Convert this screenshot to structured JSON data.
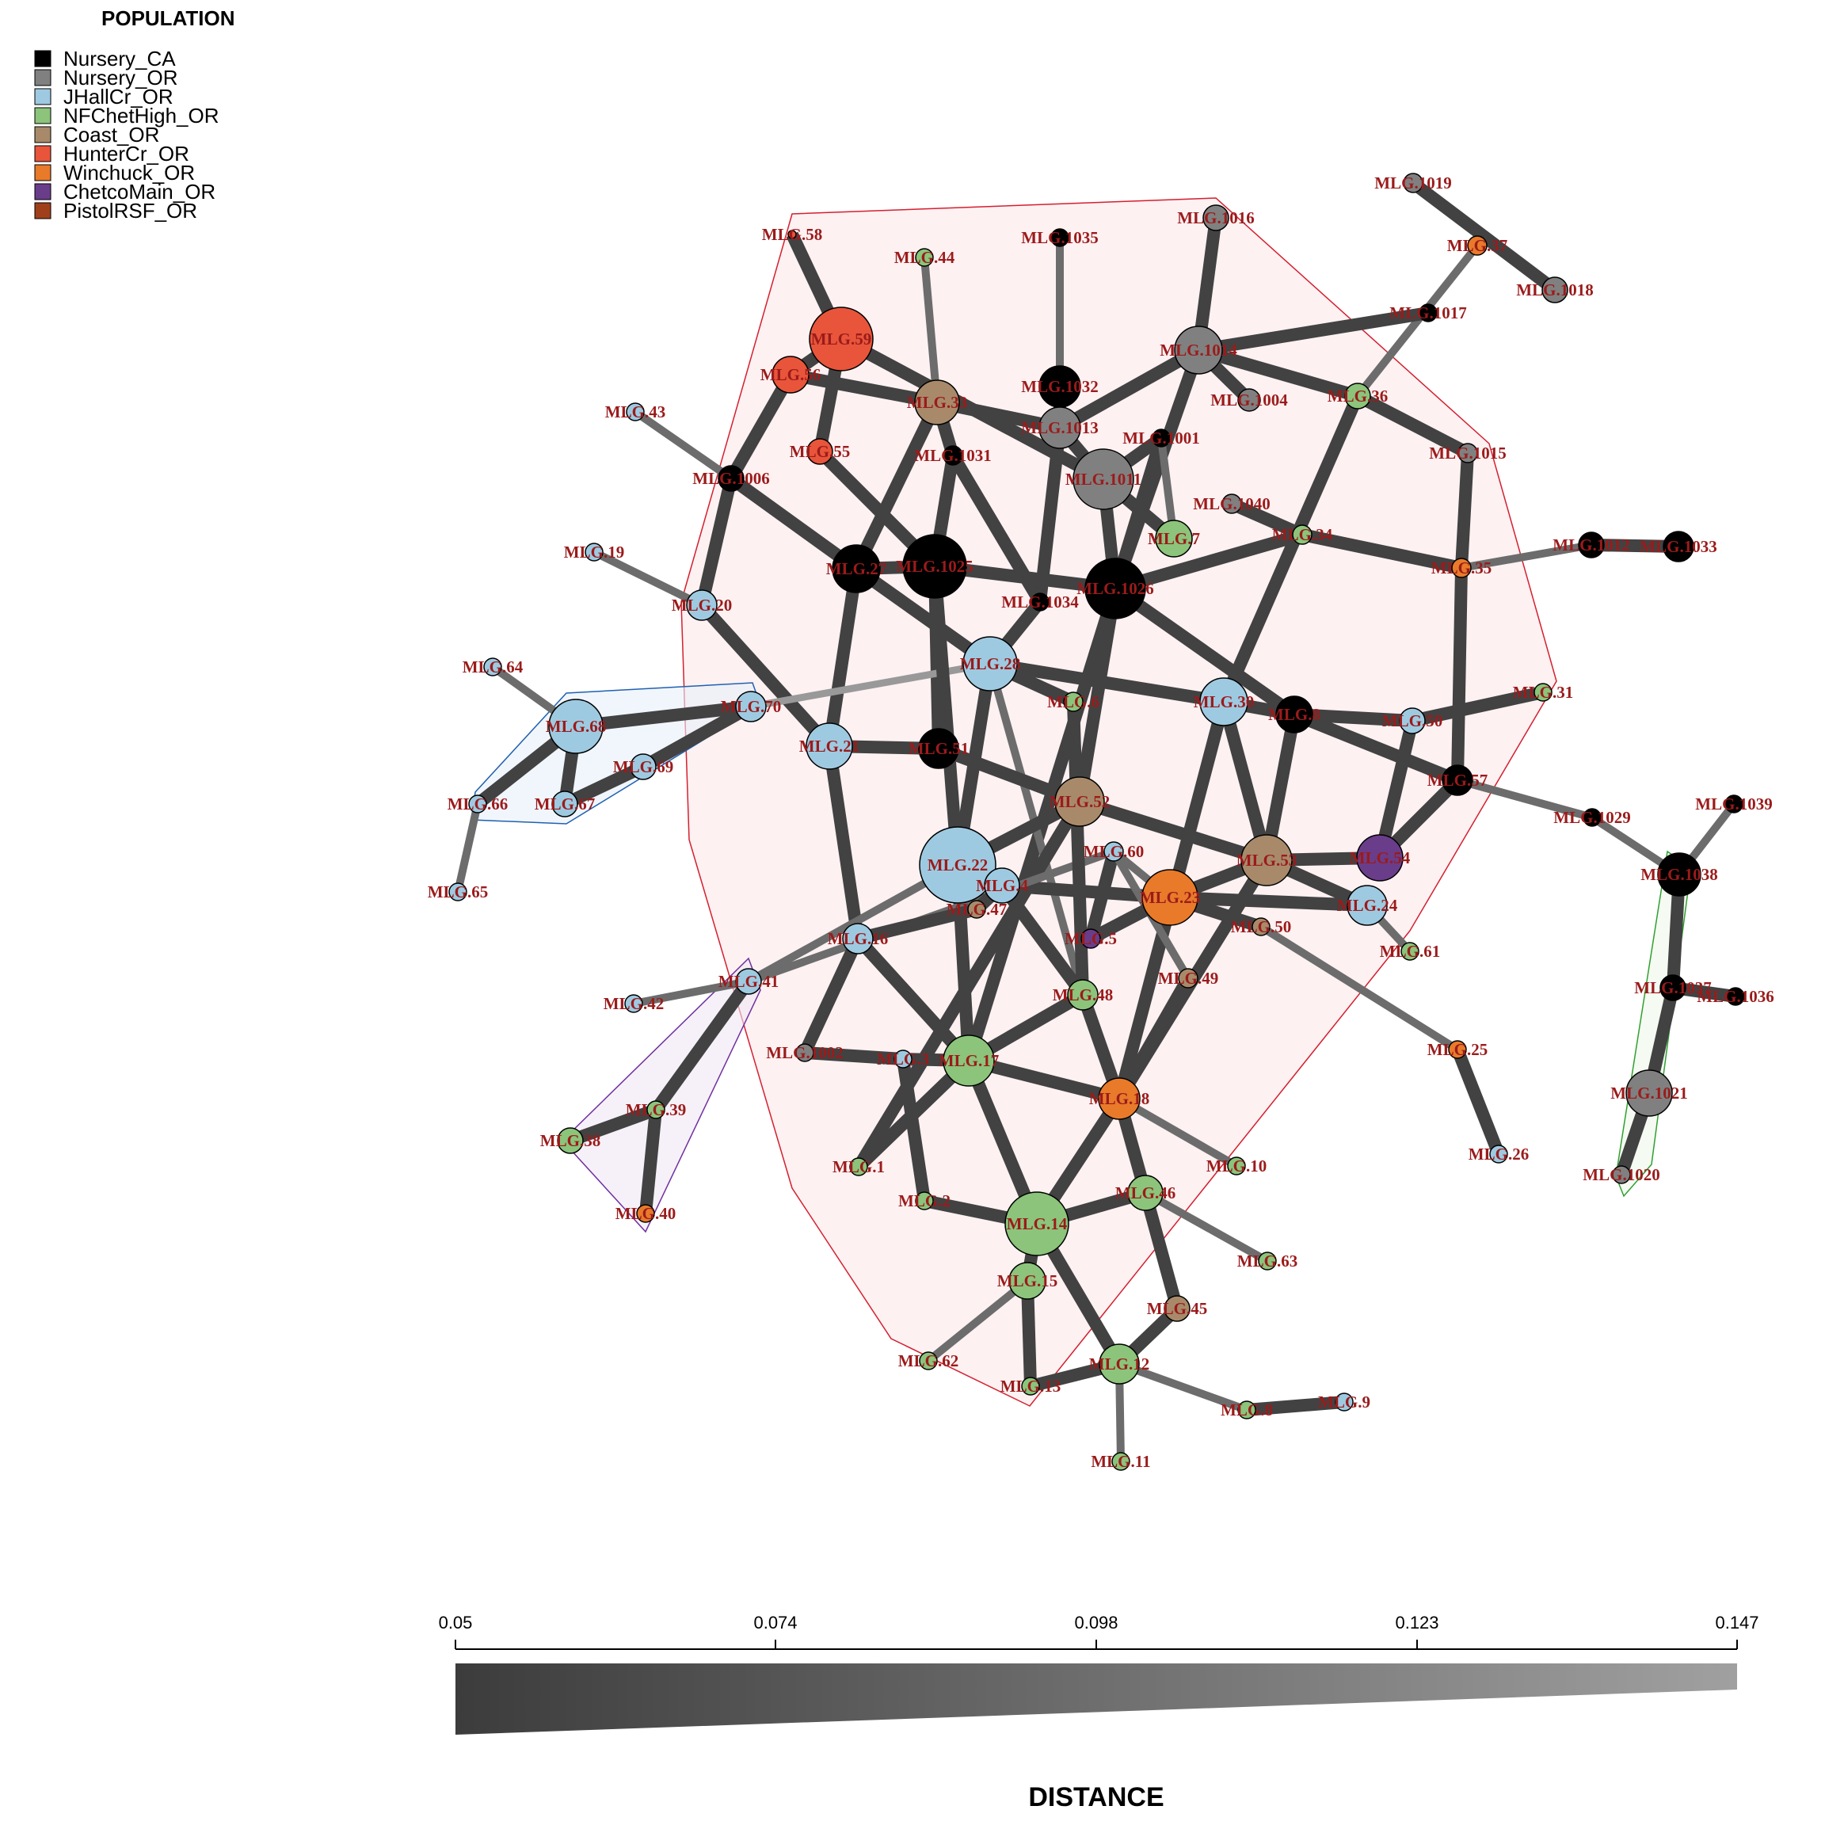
{
  "legend": {
    "title": "POPULATION",
    "items": [
      {
        "label": "Nursery_CA",
        "color": "#000000"
      },
      {
        "label": "Nursery_OR",
        "color": "#808080"
      },
      {
        "label": "JHallCr_OR",
        "color": "#9ecae1"
      },
      {
        "label": "NFChetHigh_OR",
        "color": "#8bc47a"
      },
      {
        "label": "Coast_OR",
        "color": "#a88a6a"
      },
      {
        "label": "HunterCr_OR",
        "color": "#e8553a"
      },
      {
        "label": "Winchuck_OR",
        "color": "#e87a2a"
      },
      {
        "label": "ChetcoMain_OR",
        "color": "#6a3d8a"
      },
      {
        "label": "PistolRSF_OR",
        "color": "#a0401a"
      }
    ]
  },
  "scale": {
    "title": "DISTANCE",
    "ticks": [
      "0.05",
      "0.074",
      "0.098",
      "0.123",
      "0.147"
    ]
  },
  "nodes": [
    {
      "id": "MLG.58",
      "label": "MLG.58",
      "color": "#e8553a"
    },
    {
      "id": "MLG.44",
      "label": "MLG.44",
      "color": "#8bc47a"
    },
    {
      "id": "MLG.1035",
      "label": "MLG.1035",
      "color": "#000000"
    },
    {
      "id": "MLG.1016",
      "label": "MLG.1016",
      "color": "#808080"
    },
    {
      "id": "MLG.1019",
      "label": "MLG.1019",
      "color": "#808080"
    },
    {
      "id": "MLG.37",
      "label": "MLG.37",
      "color": "#e87a2a"
    },
    {
      "id": "MLG.1018",
      "label": "MLG.1018",
      "color": "#808080"
    },
    {
      "id": "MLG.1017",
      "label": "MLG.1017",
      "color": "#000000"
    },
    {
      "id": "MLG.59",
      "label": "MLG.59",
      "color": "#e8553a"
    },
    {
      "id": "MLG.56",
      "label": "MLG.56",
      "color": "#e8553a"
    },
    {
      "id": "MLG.33",
      "label": "MLG.33",
      "color": "#a88a6a"
    },
    {
      "id": "MLG.1032",
      "label": "MLG.1032",
      "color": "#000000"
    },
    {
      "id": "MLG.1014",
      "label": "MLG.1014",
      "color": "#808080"
    },
    {
      "id": "MLG.1004",
      "label": "MLG.1004",
      "color": "#808080"
    },
    {
      "id": "MLG.36",
      "label": "MLG.36",
      "color": "#8bc47a"
    },
    {
      "id": "MLG.43",
      "label": "MLG.43",
      "color": "#9ecae1"
    },
    {
      "id": "MLG.55",
      "label": "MLG.55",
      "color": "#e8553a"
    },
    {
      "id": "MLG.1031",
      "label": "MLG.1031",
      "color": "#000000"
    },
    {
      "id": "MLG.1013",
      "label": "MLG.1013",
      "color": "#808080"
    },
    {
      "id": "MLG.1001",
      "label": "MLG.1001",
      "color": "#000000"
    },
    {
      "id": "MLG.1015",
      "label": "MLG.1015",
      "color": "#808080"
    },
    {
      "id": "MLG.1006",
      "label": "MLG.1006",
      "color": "#000000"
    },
    {
      "id": "MLG.1011",
      "label": "MLG.1011",
      "color": "#808080"
    },
    {
      "id": "MLG.1040",
      "label": "MLG.1040",
      "color": "#808080"
    },
    {
      "id": "MLG.7",
      "label": "MLG.7",
      "color": "#8bc47a"
    },
    {
      "id": "MLG.34",
      "label": "MLG.34",
      "color": "#8bc47a"
    },
    {
      "id": "MLG.1012",
      "label": "MLG.1012",
      "color": "#000000"
    },
    {
      "id": "MLG.1033",
      "label": "MLG.1033",
      "color": "#000000"
    },
    {
      "id": "MLG.19",
      "label": "MLG.19",
      "color": "#9ecae1"
    },
    {
      "id": "MLG.27",
      "label": "MLG.27",
      "color": "#000000"
    },
    {
      "id": "MLG.1025",
      "label": "MLG.1025",
      "color": "#000000"
    },
    {
      "id": "MLG.1026",
      "label": "MLG.1026",
      "color": "#000000"
    },
    {
      "id": "MLG.35",
      "label": "MLG.35",
      "color": "#e87a2a"
    },
    {
      "id": "MLG.20",
      "label": "MLG.20",
      "color": "#9ecae1"
    },
    {
      "id": "MLG.1034",
      "label": "MLG.1034",
      "color": "#000000"
    },
    {
      "id": "MLG.28",
      "label": "MLG.28",
      "color": "#9ecae1"
    },
    {
      "id": "MLG.64",
      "label": "MLG.64",
      "color": "#9ecae1"
    },
    {
      "id": "MLG.6",
      "label": "MLG.6",
      "color": "#8bc47a"
    },
    {
      "id": "MLG.30",
      "label": "MLG.30",
      "color": "#9ecae1"
    },
    {
      "id": "MLG.8",
      "label": "MLG.8",
      "color": "#000000"
    },
    {
      "id": "MLG.31",
      "label": "MLG.31",
      "color": "#8bc47a"
    },
    {
      "id": "MLG.68",
      "label": "MLG.68",
      "color": "#9ecae1"
    },
    {
      "id": "MLG.70",
      "label": "MLG.70",
      "color": "#9ecae1"
    },
    {
      "id": "MLG.21",
      "label": "MLG.21",
      "color": "#9ecae1"
    },
    {
      "id": "MLG.51",
      "label": "MLG.51",
      "color": "#000000"
    },
    {
      "id": "MLG.50b",
      "label": "MLG.50",
      "color": "#9ecae1"
    },
    {
      "id": "MLG.57",
      "label": "MLG.57",
      "color": "#000000"
    },
    {
      "id": "MLG.69",
      "label": "MLG.69",
      "color": "#9ecae1"
    },
    {
      "id": "MLG.66",
      "label": "MLG.66",
      "color": "#9ecae1"
    },
    {
      "id": "MLG.67",
      "label": "MLG.67",
      "color": "#9ecae1"
    },
    {
      "id": "MLG.52",
      "label": "MLG.52",
      "color": "#a88a6a"
    },
    {
      "id": "MLG.1029",
      "label": "MLG.1029",
      "color": "#000000"
    },
    {
      "id": "MLG.1039",
      "label": "MLG.1039",
      "color": "#000000"
    },
    {
      "id": "MLG.22",
      "label": "MLG.22",
      "color": "#9ecae1"
    },
    {
      "id": "MLG.60",
      "label": "MLG.60",
      "color": "#9ecae1"
    },
    {
      "id": "MLG.53",
      "label": "MLG.53",
      "color": "#a88a6a"
    },
    {
      "id": "MLG.54",
      "label": "MLG.54",
      "color": "#6a3d8a"
    },
    {
      "id": "MLG.1038",
      "label": "MLG.1038",
      "color": "#000000"
    },
    {
      "id": "MLG.65",
      "label": "MLG.65",
      "color": "#9ecae1"
    },
    {
      "id": "MLG.4",
      "label": "MLG.4",
      "color": "#9ecae1"
    },
    {
      "id": "MLG.47",
      "label": "MLG.47",
      "color": "#a88a6a"
    },
    {
      "id": "MLG.23",
      "label": "MLG.23",
      "color": "#e87a2a"
    },
    {
      "id": "MLG.24",
      "label": "MLG.24",
      "color": "#9ecae1"
    },
    {
      "id": "MLG.16",
      "label": "MLG.16",
      "color": "#9ecae1"
    },
    {
      "id": "MLG.5",
      "label": "MLG.5",
      "color": "#6a3d8a"
    },
    {
      "id": "MLG.50",
      "label": "MLG.50",
      "color": "#a88a6a"
    },
    {
      "id": "MLG.61",
      "label": "MLG.61",
      "color": "#8bc47a"
    },
    {
      "id": "MLG.41",
      "label": "MLG.41",
      "color": "#9ecae1"
    },
    {
      "id": "MLG.42",
      "label": "MLG.42",
      "color": "#9ecae1"
    },
    {
      "id": "MLG.48",
      "label": "MLG.48",
      "color": "#8bc47a"
    },
    {
      "id": "MLG.49",
      "label": "MLG.49",
      "color": "#a88a6a"
    },
    {
      "id": "MLG.1037",
      "label": "MLG.1037",
      "color": "#000000"
    },
    {
      "id": "MLG.1036",
      "label": "MLG.1036",
      "color": "#000000"
    },
    {
      "id": "MLG.1002",
      "label": "MLG.1002",
      "color": "#808080"
    },
    {
      "id": "MLG.3",
      "label": "MLG.3",
      "color": "#9ecae1"
    },
    {
      "id": "MLG.17",
      "label": "MLG.17",
      "color": "#8bc47a"
    },
    {
      "id": "MLG.25",
      "label": "MLG.25",
      "color": "#e87a2a"
    },
    {
      "id": "MLG.18",
      "label": "MLG.18",
      "color": "#e87a2a"
    },
    {
      "id": "MLG.1021",
      "label": "MLG.1021",
      "color": "#808080"
    },
    {
      "id": "MLG.39",
      "label": "MLG.39",
      "color": "#8bc47a"
    },
    {
      "id": "MLG.38",
      "label": "MLG.38",
      "color": "#8bc47a"
    },
    {
      "id": "MLG.26",
      "label": "MLG.26",
      "color": "#9ecae1"
    },
    {
      "id": "MLG.1",
      "label": "MLG.1",
      "color": "#8bc47a"
    },
    {
      "id": "MLG.10",
      "label": "MLG.10",
      "color": "#8bc47a"
    },
    {
      "id": "MLG.1020",
      "label": "MLG.1020",
      "color": "#808080"
    },
    {
      "id": "MLG.2",
      "label": "MLG.2",
      "color": "#8bc47a"
    },
    {
      "id": "MLG.46",
      "label": "MLG.46",
      "color": "#8bc47a"
    },
    {
      "id": "MLG.40",
      "label": "MLG.40",
      "color": "#e87a2a"
    },
    {
      "id": "MLG.14",
      "label": "MLG.14",
      "color": "#8bc47a"
    },
    {
      "id": "MLG.63",
      "label": "MLG.63",
      "color": "#8bc47a"
    },
    {
      "id": "MLG.15",
      "label": "MLG.15",
      "color": "#8bc47a"
    },
    {
      "id": "MLG.45",
      "label": "MLG.45",
      "color": "#a88a6a"
    },
    {
      "id": "MLG.62",
      "label": "MLG.62",
      "color": "#8bc47a"
    },
    {
      "id": "MLG.12",
      "label": "MLG.12",
      "color": "#8bc47a"
    },
    {
      "id": "MLG.13",
      "label": "MLG.13",
      "color": "#8bc47a"
    },
    {
      "id": "MLG.8b",
      "label": "MLG.8",
      "color": "#8bc47a"
    },
    {
      "id": "MLG.9",
      "label": "MLG.9",
      "color": "#9ecae1"
    },
    {
      "id": "MLG.11",
      "label": "MLG.11",
      "color": "#8bc47a"
    }
  ]
}
